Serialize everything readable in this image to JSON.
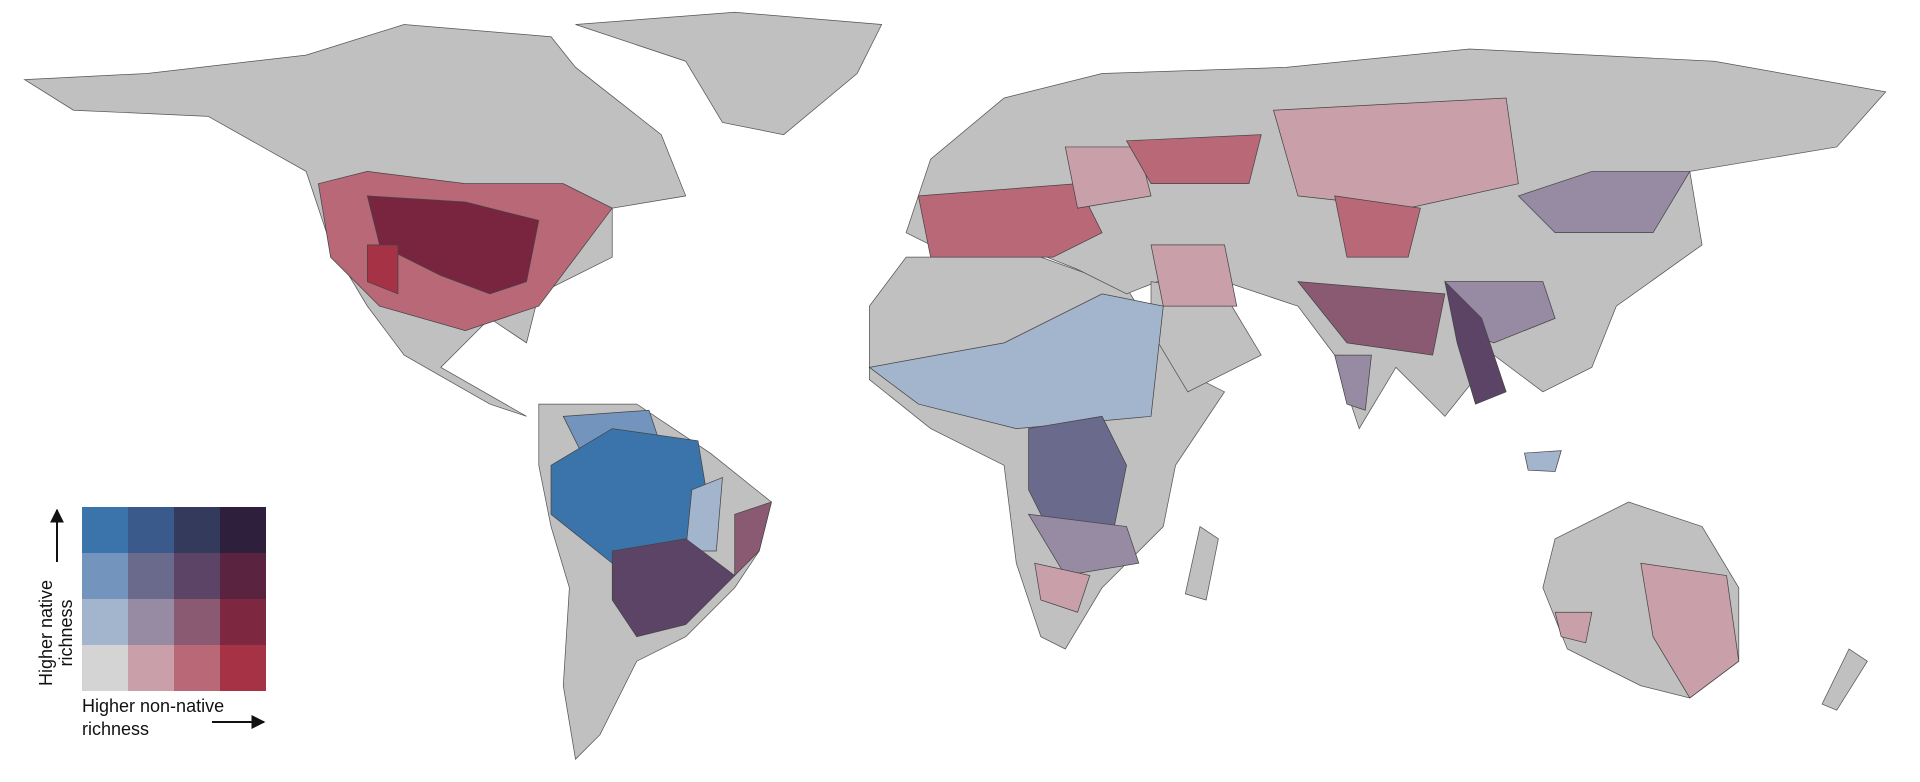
{
  "legend": {
    "y_label_lines": [
      "Higher native",
      "richness"
    ],
    "x_label_lines": [
      "Higher non-native",
      "richness"
    ],
    "colors": [
      [
        "#3b74ab",
        "#395a8a",
        "#333a5c",
        "#2e1f3d"
      ],
      [
        "#7294bd",
        "#6a6a8c",
        "#5c4466",
        "#5a2340"
      ],
      [
        "#a3b5cc",
        "#978aa3",
        "#8a5a72",
        "#7d2740"
      ],
      [
        "#d4d4d4",
        "#c9a0aa",
        "#b96878",
        "#a63246"
      ]
    ]
  }
}
